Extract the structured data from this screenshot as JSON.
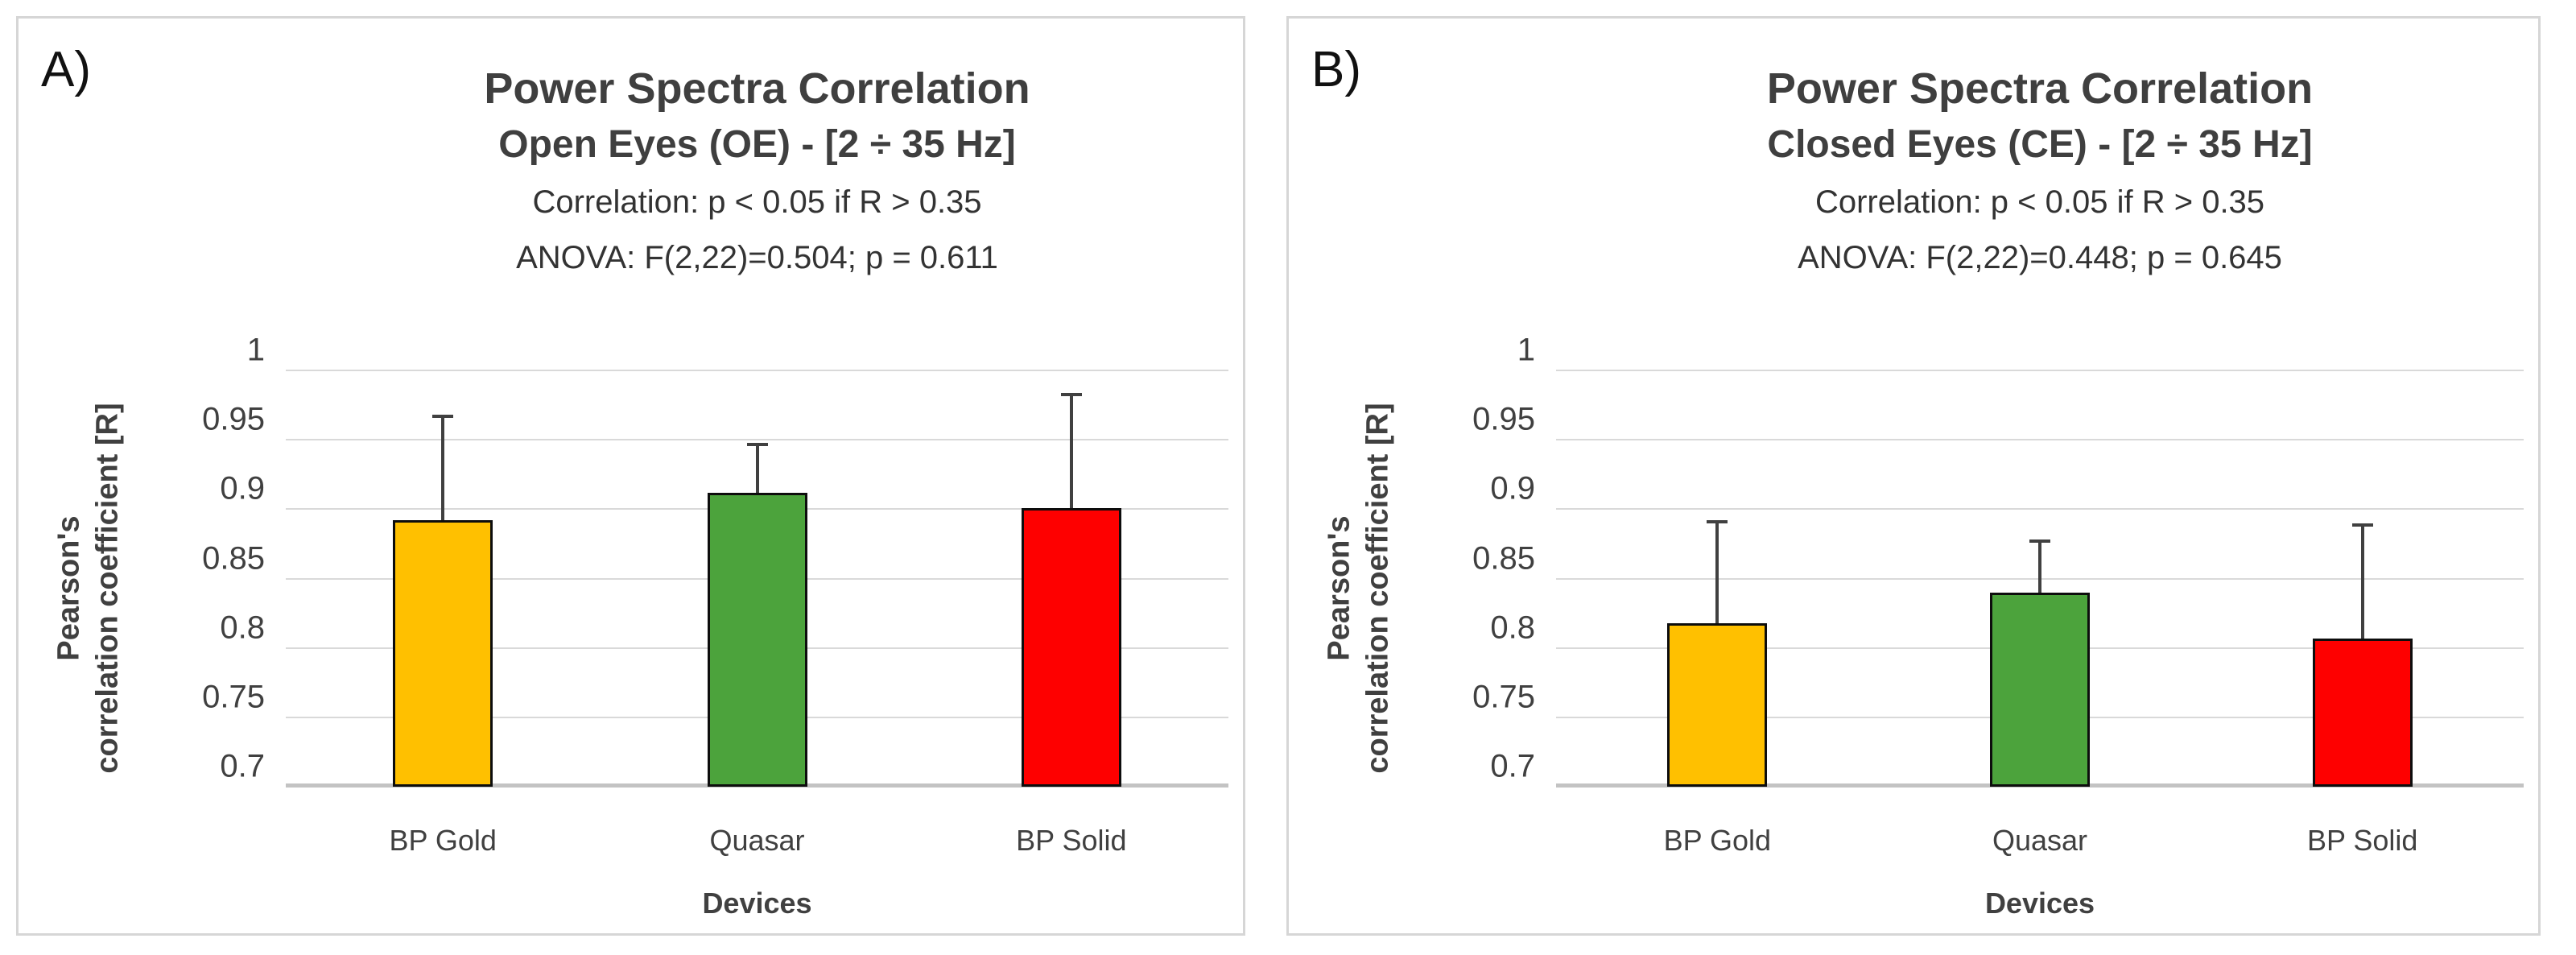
{
  "page": {
    "background": "#ffffff",
    "panel_border_color": "#d6d6d6"
  },
  "chart_data": [
    {
      "type": "bar",
      "panel_label": "A)",
      "title": "Power Spectra Correlation",
      "subtitle": "Open Eyes (OE) - [2 ÷ 35 Hz]",
      "note_correlation": "Correlation: p < 0.05 if R > 0.35",
      "note_anova": "ANOVA: F(2,22)=0.504; p = 0.611",
      "categories": [
        "BP Gold",
        "Quasar",
        "BP Solid"
      ],
      "values": [
        0.892,
        0.912,
        0.901
      ],
      "error_upper": [
        0.076,
        0.036,
        0.083
      ],
      "bar_colors": [
        "#FFC000",
        "#4CA33C",
        "#FE0000"
      ],
      "xlabel": "Devices",
      "ylabel_lines": [
        "Pearson's",
        "correlation coefficient [R]"
      ],
      "yticks": [
        1,
        0.95,
        0.9,
        0.85,
        0.8,
        0.75,
        0.7
      ],
      "ytick_labels": [
        "1",
        "0.95",
        "0.9",
        "0.85",
        "0.8",
        "0.75",
        "0.7"
      ],
      "ylim": [
        0.7,
        1.0
      ],
      "grid": true,
      "legend": false,
      "gridline_color": "#d9d9d9",
      "error_color": "#404040"
    },
    {
      "type": "bar",
      "panel_label": "B)",
      "title": "Power Spectra Correlation",
      "subtitle": "Closed Eyes (CE) - [2 ÷ 35 Hz]",
      "note_correlation": "Correlation: p < 0.05 if R > 0.35",
      "note_anova": "ANOVA: F(2,22)=0.448; p = 0.645",
      "categories": [
        "BP Gold",
        "Quasar",
        "BP Solid"
      ],
      "values": [
        0.818,
        0.84,
        0.807
      ],
      "error_upper": [
        0.074,
        0.038,
        0.083
      ],
      "bar_colors": [
        "#FFC000",
        "#4CA33C",
        "#FE0000"
      ],
      "xlabel": "Devices",
      "ylabel_lines": [
        "Pearson's",
        "correlation coefficient [R]"
      ],
      "yticks": [
        1,
        0.95,
        0.9,
        0.85,
        0.8,
        0.75,
        0.7
      ],
      "ytick_labels": [
        "1",
        "0.95",
        "0.9",
        "0.85",
        "0.8",
        "0.75",
        "0.7"
      ],
      "ylim": [
        0.7,
        1.0
      ],
      "grid": true,
      "legend": false,
      "gridline_color": "#d9d9d9",
      "error_color": "#404040"
    }
  ]
}
